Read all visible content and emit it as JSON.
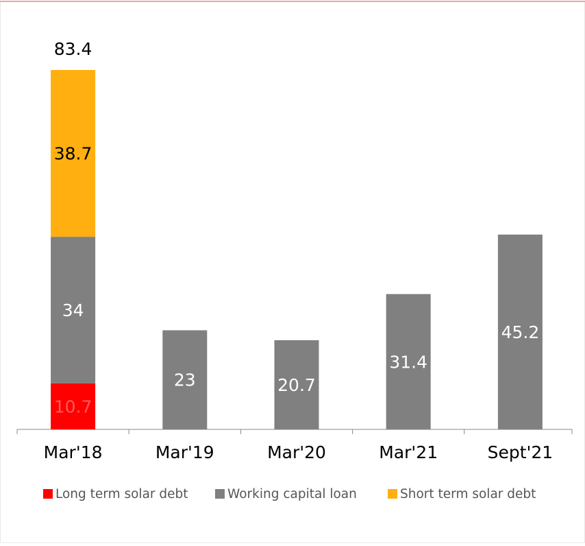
{
  "chart_data": {
    "type": "stacked_bar",
    "categories": [
      "Mar'18",
      "Mar'19",
      "Mar'20",
      "Mar'21",
      "Sept'21"
    ],
    "series": [
      {
        "name": "Long term solar debt",
        "color": "#ff0000",
        "label_color": "#ff5a5a",
        "values": [
          10.7,
          null,
          null,
          null,
          null
        ]
      },
      {
        "name": "Working capital loan",
        "color": "#808080",
        "label_color": "#ffffff",
        "values": [
          34,
          23,
          20.7,
          31.4,
          45.2
        ]
      },
      {
        "name": "Short term solar debt",
        "color": "#ffb010",
        "label_color": "#000000",
        "values": [
          38.7,
          null,
          null,
          null,
          null
        ]
      }
    ],
    "totals": [
      83.4,
      null,
      null,
      null,
      null
    ],
    "legend": "bottom"
  }
}
